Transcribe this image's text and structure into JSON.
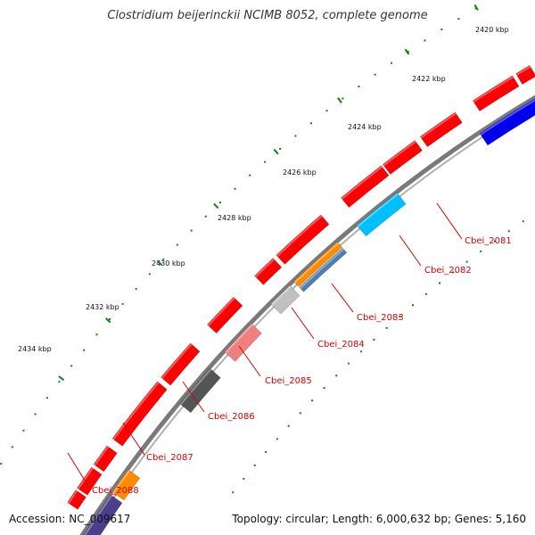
{
  "title": "Clostridium beijerinckii NCIMB 8052, complete genome",
  "footer": {
    "accession": "Accession: NC_009617",
    "summary": "Topology: circular; Length: 6,000,632 bp; Genes: 5,160"
  },
  "scale": {
    "ticks": [
      "2420 kbp",
      "2422 kbp",
      "2424 kbp",
      "2426 kbp",
      "2428 kbp",
      "2430 kbp",
      "2432 kbp",
      "2434 kbp"
    ]
  },
  "genes": [
    {
      "label": "Cbei_2081",
      "color": "#0000ee"
    },
    {
      "label": "Cbei_2082",
      "color": "#00bfff"
    },
    {
      "label": "Cbei_2083",
      "color": "#ff8c00"
    },
    {
      "label": "Cbei_2084",
      "color": "#c0c0c0"
    },
    {
      "label": "Cbei_2085",
      "color": "#f08080"
    },
    {
      "label": "Cbei_2086",
      "color": "#555555"
    },
    {
      "label": "Cbei_2087",
      "color": "#ff0000"
    },
    {
      "label": "Cbei_2088",
      "color": "#ff8c00"
    }
  ],
  "colors": {
    "forward_strand": "#ff0000",
    "backbone": "#888888",
    "tick_minor": "#1a7a1a",
    "label": "#d40000",
    "extra_purple": "#4b3f8c",
    "extra_steel": "#4f7fb0"
  }
}
